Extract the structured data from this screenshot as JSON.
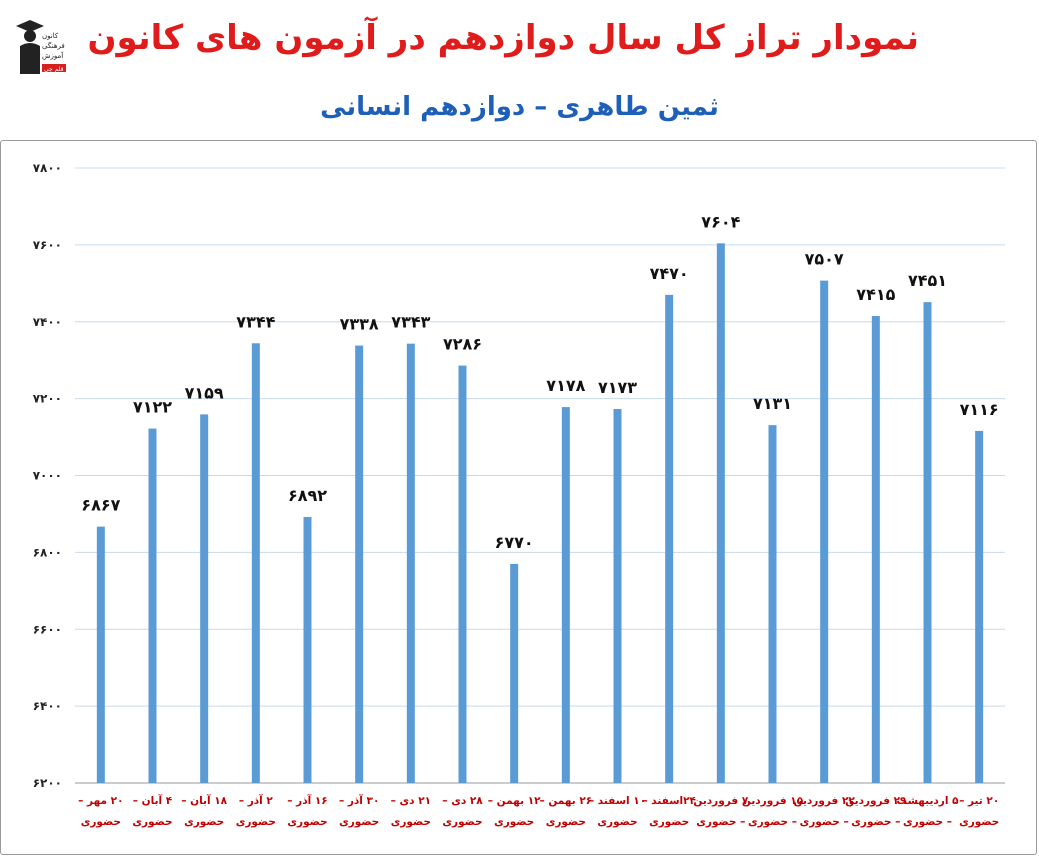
{
  "header": {
    "title": "نمودار تراز کل سال دوازدهم در آزمون های کانون",
    "subtitle": "ثمین طاهری – دوازدهم انسانی"
  },
  "logo": {
    "icon": "kanoon-logo-icon",
    "text": [
      "کانون",
      "فرهنگی",
      "آموزش",
      "قلم چی"
    ]
  },
  "colors": {
    "title": "#e01b1b",
    "subtitle": "#1e5fb8",
    "bar": "#5b9bd5",
    "grid": "#c8d9ec",
    "category_label": "#c00000"
  },
  "chart_data": {
    "type": "bar",
    "title": "نمودار تراز کل سال دوازدهم در آزمون های کانون",
    "subtitle": "ثمین طاهری – دوازدهم انسانی",
    "ylim": [
      6200,
      7800
    ],
    "yticks": [
      6200,
      6400,
      6600,
      6800,
      7000,
      7200,
      7400,
      7600,
      7800
    ],
    "ytick_labels": [
      "۶۲۰۰",
      "۶۴۰۰",
      "۶۶۰۰",
      "۶۸۰۰",
      "۷۰۰۰",
      "۷۲۰۰",
      "۷۴۰۰",
      "۷۶۰۰",
      "۷۸۰۰"
    ],
    "grid": true,
    "legend": "none",
    "categories": [
      [
        "۲۰ مهر –",
        "حضوری"
      ],
      [
        "۴ آبان –",
        "حضوری"
      ],
      [
        "۱۸ آبان –",
        "حضوری"
      ],
      [
        "۲ آذر –",
        "حضوری"
      ],
      [
        "۱۶ آذر –",
        "حضوری"
      ],
      [
        "۳۰ آذر –",
        "حضوری"
      ],
      [
        "۲۱ دی –",
        "حضوری"
      ],
      [
        "۲۸ دی –",
        "حضوری"
      ],
      [
        "۱۲ بهمن –",
        "حضوری"
      ],
      [
        "۲۶ بهمن –",
        "حضوری"
      ],
      [
        "۱۰ اسفند –",
        "حضوری"
      ],
      [
        "۲۴اسفند –",
        "حضوری"
      ],
      [
        "۷ فروردین",
        "– حضوری"
      ],
      [
        "۱۵ فروردین",
        "– حضوری"
      ],
      [
        "۲۲ فروردین",
        "– حضوری"
      ],
      [
        "۲۹ فروردین",
        "– حضوری"
      ],
      [
        "۵ اردیبهشت",
        "– حضوری"
      ],
      [
        "۲۰ تیر –",
        "حضوری"
      ]
    ],
    "values": [
      6867,
      7122,
      7159,
      7344,
      6892,
      7338,
      7343,
      7286,
      6770,
      7178,
      7173,
      7470,
      7604,
      7131,
      7507,
      7415,
      7451,
      7116
    ],
    "value_labels": [
      "۶۸۶۷",
      "۷۱۲۲",
      "۷۱۵۹",
      "۷۳۴۴",
      "۶۸۹۲",
      "۷۳۳۸",
      "۷۳۴۳",
      "۷۲۸۶",
      "۶۷۷۰",
      "۷۱۷۸",
      "۷۱۷۳",
      "۷۴۷۰",
      "۷۶۰۴",
      "۷۱۳۱",
      "۷۵۰۷",
      "۷۴۱۵",
      "۷۴۵۱",
      "۷۱۱۶"
    ]
  }
}
